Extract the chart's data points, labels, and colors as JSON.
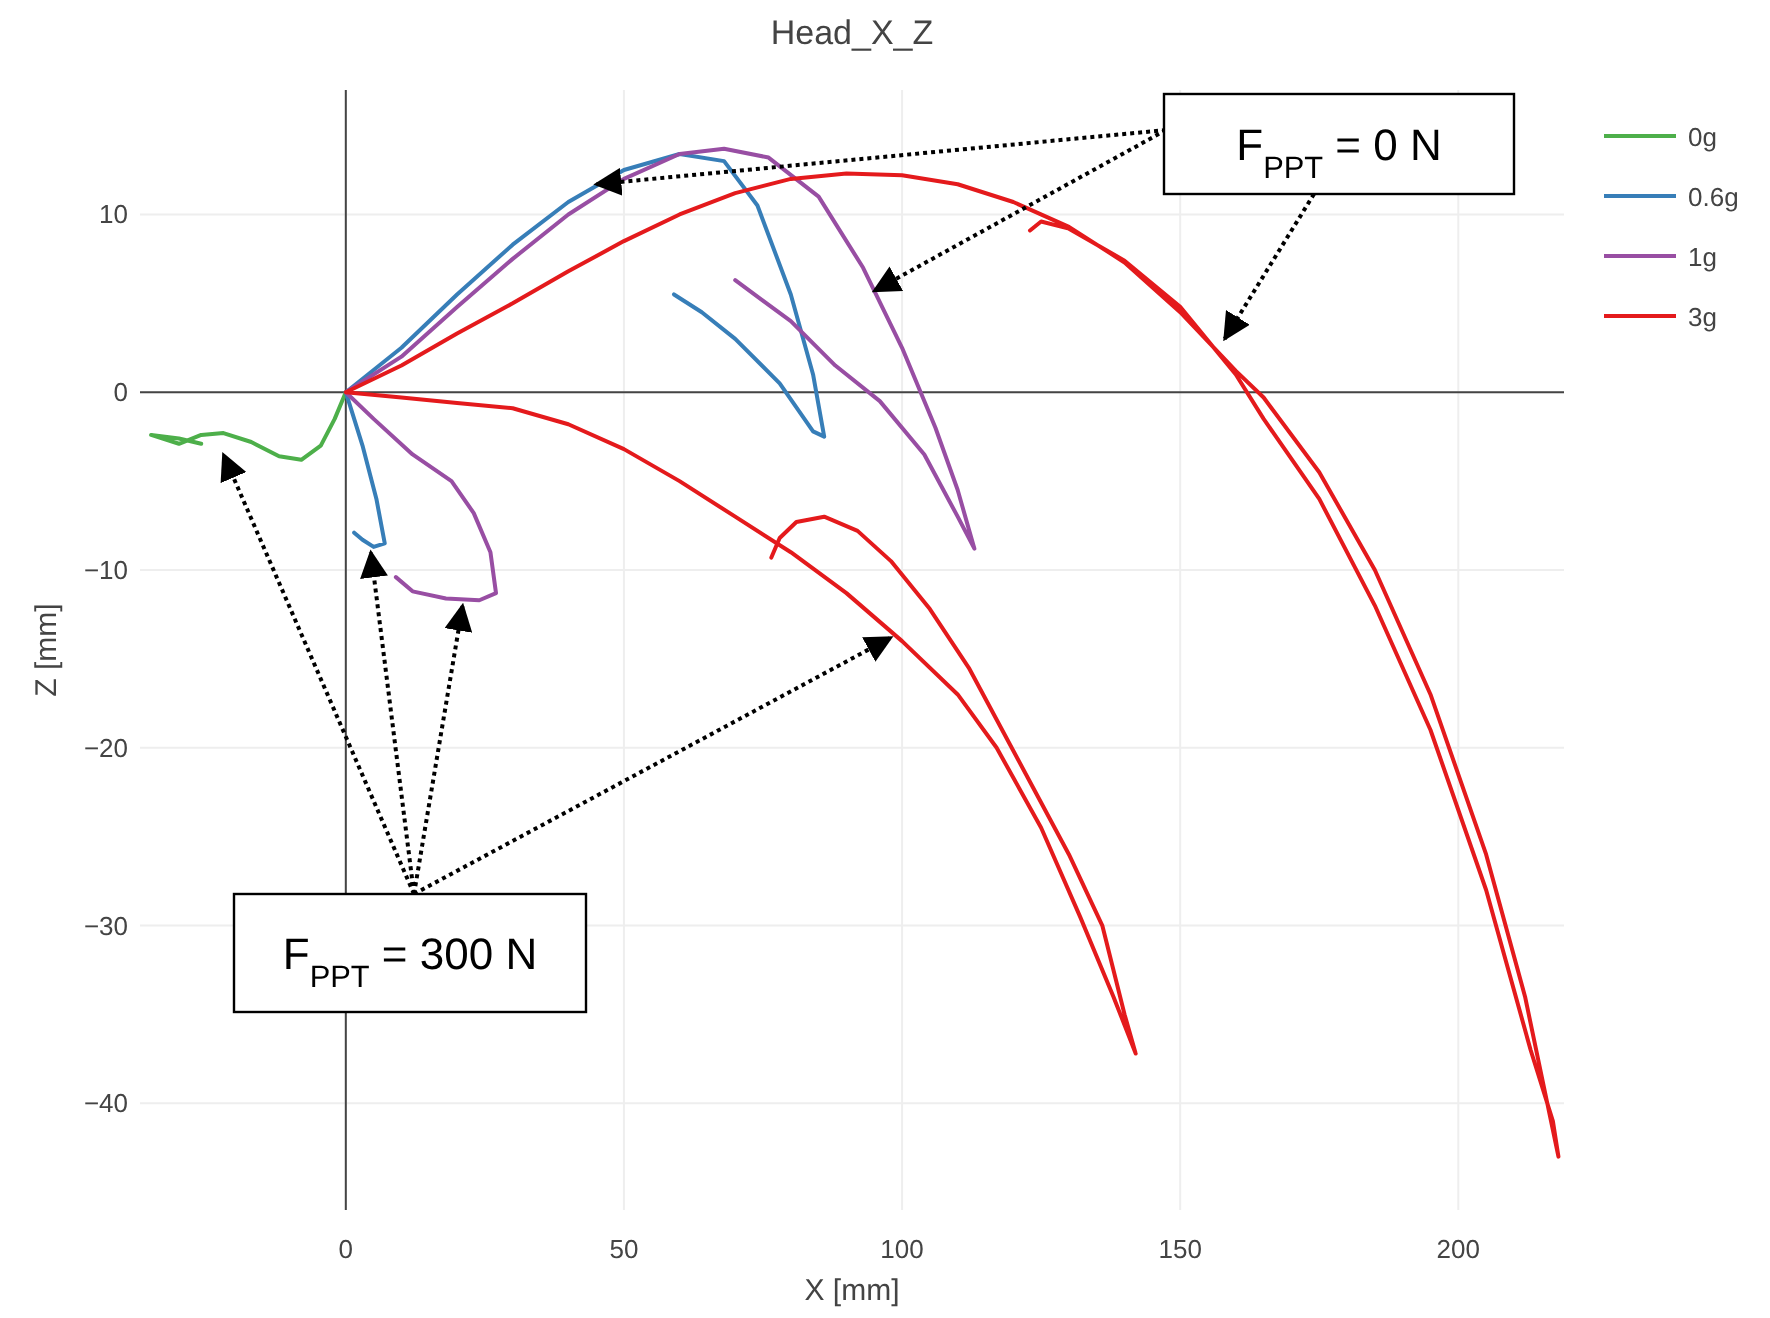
{
  "chart_data": {
    "type": "line",
    "title": "Head_X_Z",
    "xlabel": "X [mm]",
    "ylabel": "Z [mm]",
    "xlim": [
      -37,
      219
    ],
    "ylim": [
      -46,
      17
    ],
    "xticks": [
      0,
      50,
      100,
      150,
      200
    ],
    "yticks": [
      -40,
      -30,
      -20,
      -10,
      0,
      10
    ],
    "grid": true,
    "legend": "top right",
    "marker": "none",
    "line_style": "solid",
    "annotations": [
      "F$_{PPT}$ = 0 N",
      {
        "text": "F$_{PPT}$ = 300 N",
        "x": 98,
        "y": -13.8
      }
    ],
    "series": [
      {
        "name": "0g",
        "color": "#4daf4a",
        "x": [
          0,
          -2,
          -4.5,
          -8,
          -12,
          -17,
          -22,
          -26,
          -30,
          -35,
          -30,
          -26
        ],
        "values": [
          0,
          -1.5,
          -3,
          -3.8,
          -3.6,
          -2.8,
          -2.3,
          -2.4,
          -2.9,
          -2.4,
          -2.6,
          -2.9
        ]
      },
      {
        "name": "0.6g",
        "color": "#377eb8",
        "x": [
          0,
          10,
          20,
          30,
          40,
          50,
          60,
          68,
          74,
          80,
          84,
          86,
          84,
          78,
          70,
          64,
          59,
          null,
          0,
          3,
          5.5,
          7,
          5,
          3,
          1.5
        ],
        "values": [
          0,
          2.5,
          5.5,
          8.3,
          10.7,
          12.5,
          13.4,
          13,
          10.5,
          5.5,
          1,
          -2.5,
          -2.2,
          0.5,
          3,
          4.5,
          5.5,
          null,
          0,
          -3,
          -6,
          -8.5,
          -8.7,
          -8.3,
          -7.9
        ]
      },
      {
        "name": "1g",
        "color": "#984ea3",
        "x": [
          0,
          10,
          20,
          30,
          40,
          50,
          60,
          68,
          76,
          85,
          93,
          100,
          106,
          110,
          113,
          110,
          104,
          96,
          88,
          80,
          70,
          null,
          0,
          5,
          12,
          19,
          23,
          26,
          27,
          24,
          18,
          12,
          9
        ],
        "values": [
          0,
          2,
          4.8,
          7.5,
          10,
          12,
          13.4,
          13.7,
          13.2,
          11,
          7,
          2.5,
          -2,
          -5.5,
          -8.8,
          -7,
          -3.5,
          -0.5,
          1.5,
          4,
          6.3,
          null,
          0,
          -1.5,
          -3.5,
          -5,
          -6.8,
          -9,
          -11.3,
          -11.7,
          -11.6,
          -11.2,
          -10.4
        ]
      },
      {
        "name": "3g",
        "color": "#e41a1c",
        "x": [
          0,
          10,
          20,
          30,
          40,
          50,
          60,
          70,
          80,
          90,
          100,
          110,
          120,
          130,
          140,
          150,
          160,
          165,
          175,
          185,
          195,
          205,
          212,
          216,
          218,
          217,
          213,
          205,
          195,
          185,
          175,
          165,
          160,
          150,
          140,
          130,
          125,
          123,
          null,
          0,
          10,
          20,
          30,
          40,
          50,
          60,
          70,
          80,
          90,
          100,
          110,
          117,
          125,
          132,
          138,
          142,
          140,
          136,
          130,
          124,
          118,
          112,
          105,
          98,
          92,
          86,
          81,
          78,
          76.5
        ],
        "values": [
          0,
          1.5,
          3.3,
          5,
          6.8,
          8.5,
          10,
          11.2,
          12,
          12.3,
          12.2,
          11.7,
          10.7,
          9.3,
          7.3,
          4.5,
          1.2,
          -0.3,
          -4.5,
          -10,
          -17,
          -26,
          -34,
          -40,
          -43,
          -41,
          -37,
          -28,
          -19,
          -12,
          -6,
          -1.5,
          1,
          4.8,
          7.4,
          9.2,
          9.6,
          9.1,
          null,
          0,
          -0.3,
          -0.6,
          -0.9,
          -1.8,
          -3.2,
          -5,
          -7,
          -9,
          -11.3,
          -14,
          -17,
          -20,
          -24.5,
          -29.5,
          -34,
          -37.2,
          -35,
          -30,
          -26,
          -22.5,
          -19,
          -15.5,
          -12.2,
          -9.5,
          -7.8,
          -7,
          -7.3,
          -8.2,
          -9.3
        ]
      }
    ]
  }
}
